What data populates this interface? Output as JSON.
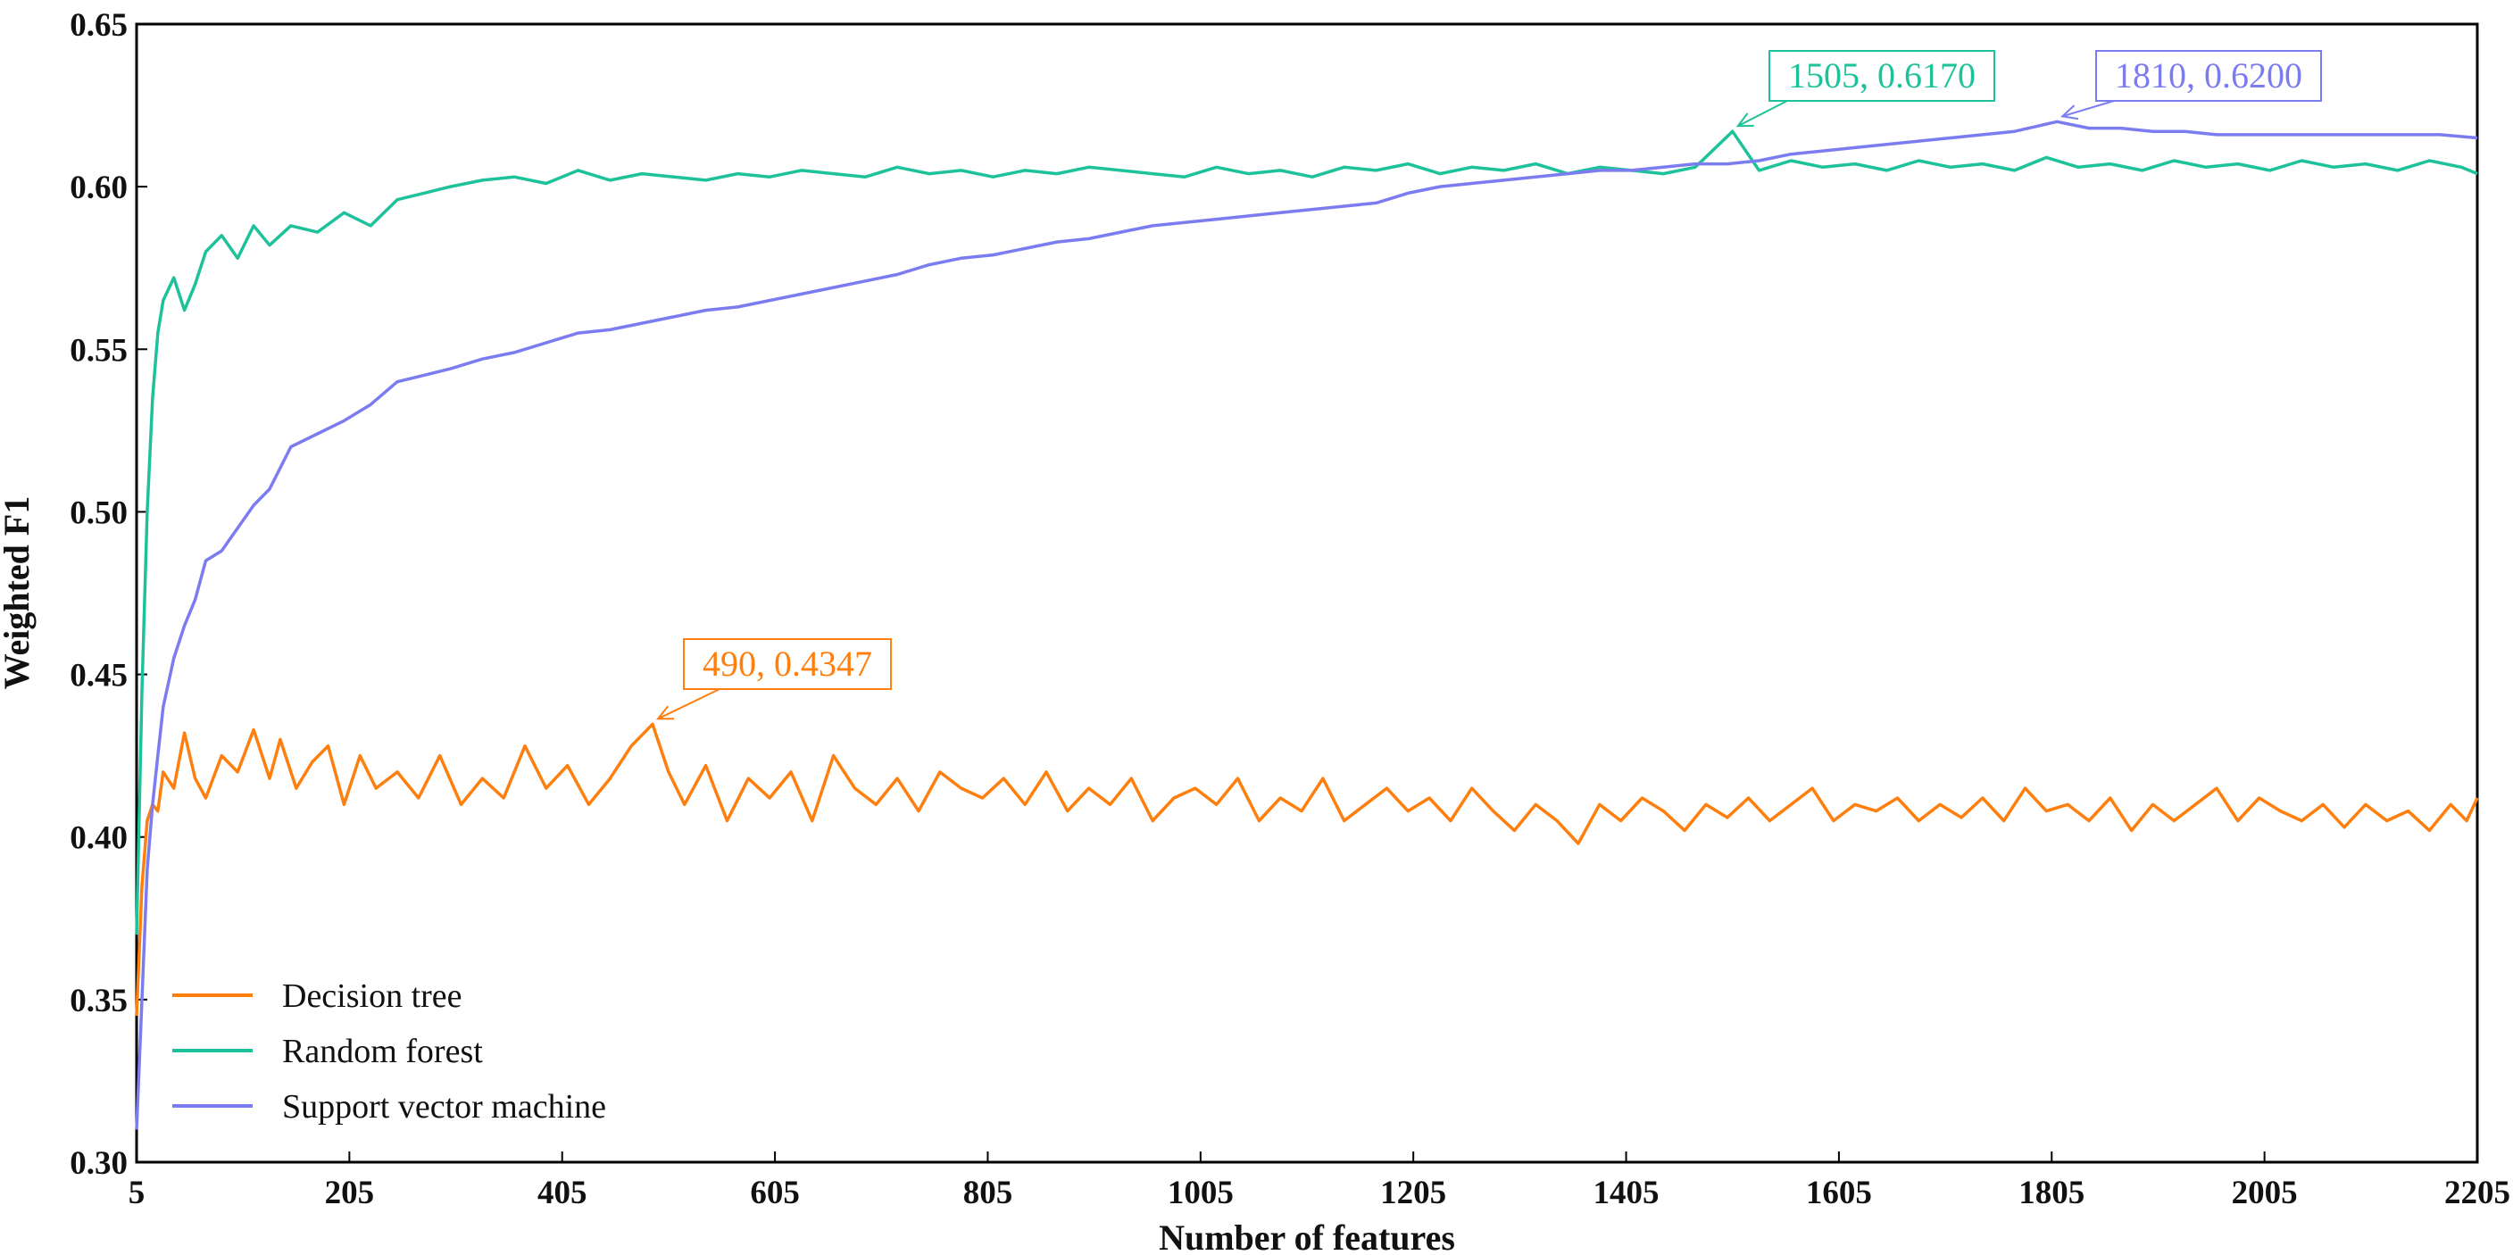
{
  "chart_data": {
    "type": "line",
    "title": "",
    "xlabel": "Number of features",
    "ylabel": "Weighted F1",
    "xlim": [
      5,
      2205
    ],
    "ylim": [
      0.3,
      0.65
    ],
    "xticks": [
      5,
      205,
      405,
      605,
      805,
      1005,
      1205,
      1405,
      1605,
      1805,
      2005,
      2205
    ],
    "xtick_labels": [
      "5",
      "205",
      "405",
      "605",
      "805",
      "1005",
      "1205",
      "1405",
      "1605",
      "1805",
      "2005",
      "2205"
    ],
    "yticks": [
      0.3,
      0.35,
      0.4,
      0.45,
      0.5,
      0.55,
      0.6,
      0.65
    ],
    "ytick_labels": [
      "0.30",
      "0.35",
      "0.40",
      "0.45",
      "0.50",
      "0.55",
      "0.60",
      "0.65"
    ],
    "grid": false,
    "legend_position": "bottom-left",
    "series": [
      {
        "name": "Decision tree",
        "color": "#ff7f0e",
        "x": [
          5,
          10,
          15,
          20,
          25,
          30,
          40,
          50,
          60,
          70,
          85,
          100,
          115,
          130,
          140,
          155,
          170,
          185,
          200,
          215,
          230,
          250,
          270,
          290,
          310,
          330,
          350,
          370,
          390,
          410,
          430,
          450,
          470,
          490,
          505,
          520,
          540,
          560,
          580,
          600,
          620,
          640,
          660,
          680,
          700,
          720,
          740,
          760,
          780,
          800,
          820,
          840,
          860,
          880,
          900,
          920,
          940,
          960,
          980,
          1000,
          1020,
          1040,
          1060,
          1080,
          1100,
          1120,
          1140,
          1160,
          1180,
          1200,
          1220,
          1240,
          1260,
          1280,
          1300,
          1320,
          1340,
          1360,
          1380,
          1400,
          1420,
          1440,
          1460,
          1480,
          1500,
          1520,
          1540,
          1560,
          1580,
          1600,
          1620,
          1640,
          1660,
          1680,
          1700,
          1720,
          1740,
          1760,
          1780,
          1800,
          1820,
          1840,
          1860,
          1880,
          1900,
          1920,
          1940,
          1960,
          1980,
          2000,
          2020,
          2040,
          2060,
          2080,
          2100,
          2120,
          2140,
          2160,
          2180,
          2195,
          2205
        ],
        "y": [
          0.345,
          0.385,
          0.405,
          0.41,
          0.408,
          0.42,
          0.415,
          0.432,
          0.418,
          0.412,
          0.425,
          0.42,
          0.433,
          0.418,
          0.43,
          0.415,
          0.423,
          0.428,
          0.41,
          0.425,
          0.415,
          0.42,
          0.412,
          0.425,
          0.41,
          0.418,
          0.412,
          0.428,
          0.415,
          0.422,
          0.41,
          0.418,
          0.428,
          0.4347,
          0.42,
          0.41,
          0.422,
          0.405,
          0.418,
          0.412,
          0.42,
          0.405,
          0.425,
          0.415,
          0.41,
          0.418,
          0.408,
          0.42,
          0.415,
          0.412,
          0.418,
          0.41,
          0.42,
          0.408,
          0.415,
          0.41,
          0.418,
          0.405,
          0.412,
          0.415,
          0.41,
          0.418,
          0.405,
          0.412,
          0.408,
          0.418,
          0.405,
          0.41,
          0.415,
          0.408,
          0.412,
          0.405,
          0.415,
          0.408,
          0.402,
          0.41,
          0.405,
          0.398,
          0.41,
          0.405,
          0.412,
          0.408,
          0.402,
          0.41,
          0.406,
          0.412,
          0.405,
          0.41,
          0.415,
          0.405,
          0.41,
          0.408,
          0.412,
          0.405,
          0.41,
          0.406,
          0.412,
          0.405,
          0.415,
          0.408,
          0.41,
          0.405,
          0.412,
          0.402,
          0.41,
          0.405,
          0.41,
          0.415,
          0.405,
          0.412,
          0.408,
          0.405,
          0.41,
          0.403,
          0.41,
          0.405,
          0.408,
          0.402,
          0.41,
          0.405,
          0.412
        ]
      },
      {
        "name": "Random forest",
        "color": "#1ec29a",
        "x": [
          5,
          10,
          15,
          20,
          25,
          30,
          40,
          50,
          60,
          70,
          85,
          100,
          115,
          130,
          150,
          175,
          200,
          225,
          250,
          275,
          300,
          330,
          360,
          390,
          420,
          450,
          480,
          510,
          540,
          570,
          600,
          630,
          660,
          690,
          720,
          750,
          780,
          810,
          840,
          870,
          900,
          930,
          960,
          990,
          1020,
          1050,
          1080,
          1110,
          1140,
          1170,
          1200,
          1230,
          1260,
          1290,
          1320,
          1350,
          1380,
          1410,
          1440,
          1470,
          1505,
          1530,
          1560,
          1590,
          1620,
          1650,
          1680,
          1710,
          1740,
          1770,
          1800,
          1830,
          1860,
          1890,
          1920,
          1950,
          1980,
          2010,
          2040,
          2070,
          2100,
          2130,
          2160,
          2190,
          2205
        ],
        "y": [
          0.37,
          0.445,
          0.5,
          0.535,
          0.555,
          0.565,
          0.572,
          0.562,
          0.57,
          0.58,
          0.585,
          0.578,
          0.588,
          0.582,
          0.588,
          0.586,
          0.592,
          0.588,
          0.596,
          0.598,
          0.6,
          0.602,
          0.603,
          0.601,
          0.605,
          0.602,
          0.604,
          0.603,
          0.602,
          0.604,
          0.603,
          0.605,
          0.604,
          0.603,
          0.606,
          0.604,
          0.605,
          0.603,
          0.605,
          0.604,
          0.606,
          0.605,
          0.604,
          0.603,
          0.606,
          0.604,
          0.605,
          0.603,
          0.606,
          0.605,
          0.607,
          0.604,
          0.606,
          0.605,
          0.607,
          0.604,
          0.606,
          0.605,
          0.604,
          0.606,
          0.617,
          0.605,
          0.608,
          0.606,
          0.607,
          0.605,
          0.608,
          0.606,
          0.607,
          0.605,
          0.609,
          0.606,
          0.607,
          0.605,
          0.608,
          0.606,
          0.607,
          0.605,
          0.608,
          0.606,
          0.607,
          0.605,
          0.608,
          0.606,
          0.604
        ]
      },
      {
        "name": "Support vector machine",
        "color": "#7b7cf0",
        "x": [
          5,
          10,
          15,
          20,
          25,
          30,
          40,
          50,
          60,
          70,
          85,
          100,
          115,
          130,
          150,
          175,
          200,
          225,
          250,
          275,
          300,
          330,
          360,
          390,
          420,
          450,
          480,
          510,
          540,
          570,
          600,
          630,
          660,
          690,
          720,
          750,
          780,
          810,
          840,
          870,
          900,
          930,
          960,
          990,
          1020,
          1050,
          1080,
          1110,
          1140,
          1170,
          1200,
          1230,
          1260,
          1290,
          1320,
          1350,
          1380,
          1410,
          1440,
          1470,
          1500,
          1530,
          1560,
          1590,
          1620,
          1650,
          1680,
          1710,
          1740,
          1770,
          1810,
          1840,
          1870,
          1900,
          1930,
          1960,
          1990,
          2020,
          2050,
          2080,
          2110,
          2140,
          2170,
          2205
        ],
        "y": [
          0.31,
          0.35,
          0.39,
          0.41,
          0.425,
          0.44,
          0.455,
          0.465,
          0.473,
          0.485,
          0.488,
          0.495,
          0.502,
          0.507,
          0.52,
          0.524,
          0.528,
          0.533,
          0.54,
          0.542,
          0.544,
          0.547,
          0.549,
          0.552,
          0.555,
          0.556,
          0.558,
          0.56,
          0.562,
          0.563,
          0.565,
          0.567,
          0.569,
          0.571,
          0.573,
          0.576,
          0.578,
          0.579,
          0.581,
          0.583,
          0.584,
          0.586,
          0.588,
          0.589,
          0.59,
          0.591,
          0.592,
          0.593,
          0.594,
          0.595,
          0.598,
          0.6,
          0.601,
          0.602,
          0.603,
          0.604,
          0.605,
          0.605,
          0.606,
          0.607,
          0.607,
          0.608,
          0.61,
          0.611,
          0.612,
          0.613,
          0.614,
          0.615,
          0.616,
          0.617,
          0.62,
          0.618,
          0.618,
          0.617,
          0.617,
          0.616,
          0.616,
          0.616,
          0.616,
          0.616,
          0.616,
          0.616,
          0.616,
          0.615
        ]
      }
    ],
    "annotations": [
      {
        "series": 1,
        "x": 1505,
        "y": 0.617,
        "text": "1505, 0.6170",
        "color": "#1ec29a"
      },
      {
        "series": 2,
        "x": 1810,
        "y": 0.62,
        "text": "1810, 0.6200",
        "color": "#7b7cf0"
      },
      {
        "series": 0,
        "x": 490,
        "y": 0.4347,
        "text": "490, 0.4347",
        "color": "#ff7f0e"
      }
    ]
  }
}
